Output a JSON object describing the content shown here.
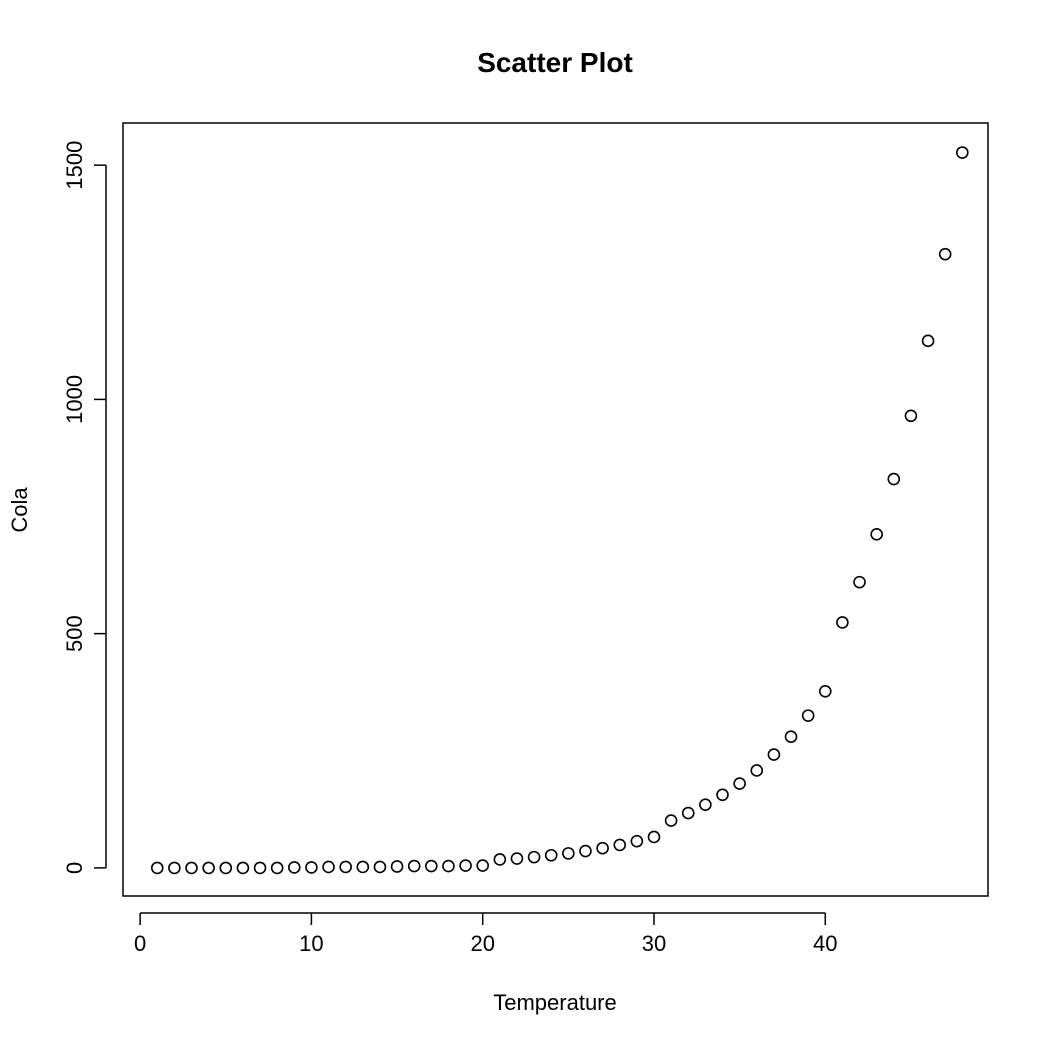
{
  "chart_data": {
    "type": "scatter",
    "title": "Scatter Plot",
    "xlabel": "Temperature",
    "ylabel": "Cola",
    "xlim": [
      -1,
      49.5
    ],
    "ylim": [
      -60,
      1590
    ],
    "xticks": [
      0,
      10,
      20,
      30,
      40
    ],
    "yticks": [
      0,
      500,
      1000,
      1500
    ],
    "grid": false,
    "point_style": "open-circle",
    "colors": {
      "points": "#000000",
      "axes": "#000000",
      "background": "#ffffff"
    },
    "series": [
      {
        "x": [
          1,
          2,
          3,
          4,
          5,
          6,
          7,
          8,
          9,
          10,
          11,
          12,
          13,
          14,
          15,
          16,
          17,
          18,
          19,
          20,
          21,
          22,
          23,
          24,
          25,
          26,
          27,
          28,
          29,
          30,
          31,
          32,
          33,
          34,
          35,
          36,
          37,
          38,
          39,
          40,
          41,
          42,
          43,
          44,
          45,
          46,
          47,
          48
        ],
        "y": [
          0,
          0,
          0,
          0,
          0,
          0,
          0,
          0,
          1,
          1,
          2,
          2,
          2,
          2,
          3,
          4,
          4,
          4,
          5,
          5,
          18,
          20,
          23,
          27,
          31,
          36,
          42,
          49,
          57,
          66,
          101,
          117,
          135,
          156,
          180,
          208,
          242,
          280,
          325,
          377,
          524,
          610,
          712,
          830,
          965,
          1125,
          1310,
          1527
        ]
      }
    ]
  }
}
